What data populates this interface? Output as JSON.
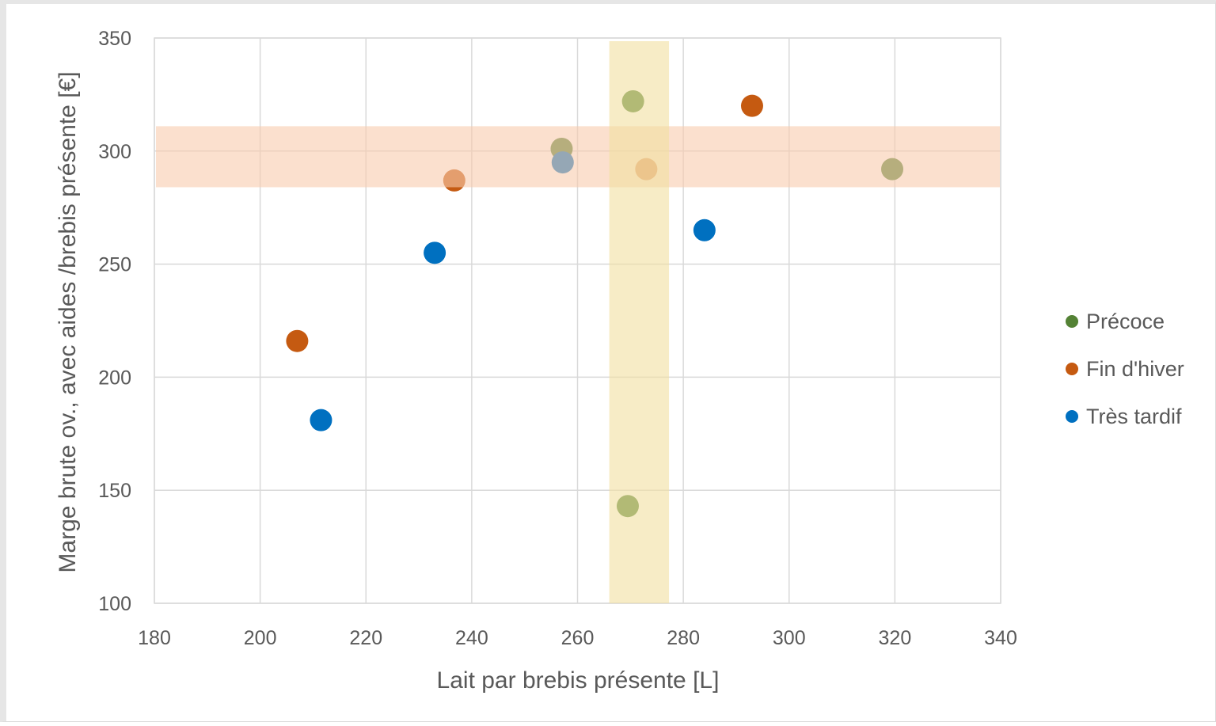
{
  "chart_data": {
    "type": "scatter",
    "title": "",
    "xlabel": "Lait par brebis présente [L]",
    "ylabel": "Marge brute ov., avec aides /brebis présente [€]",
    "xlim": [
      180,
      340
    ],
    "ylim": [
      100,
      350
    ],
    "x_ticks": [
      "180",
      "200",
      "220",
      "240",
      "260",
      "280",
      "300",
      "320",
      "340"
    ],
    "y_ticks": [
      "100",
      "150",
      "200",
      "250",
      "300",
      "350"
    ],
    "grid": true,
    "legend_position": "right",
    "series": [
      {
        "name": "Précoce",
        "color": "#548235",
        "points": [
          [
            257,
            301
          ],
          [
            270.5,
            322
          ],
          [
            269.5,
            143
          ],
          [
            319.5,
            292
          ]
        ]
      },
      {
        "name": "Fin d'hiver",
        "color": "#c55a11",
        "points": [
          [
            207,
            216
          ],
          [
            236.7,
            287
          ],
          [
            293,
            320
          ],
          [
            273,
            292
          ]
        ]
      },
      {
        "name": "Très tardif",
        "color": "#0070c0",
        "points": [
          [
            211.5,
            181
          ],
          [
            233,
            255
          ],
          [
            257.2,
            295
          ],
          [
            284,
            265
          ]
        ]
      }
    ],
    "bands": [
      {
        "orientation": "horizontal",
        "range": [
          284,
          311
        ],
        "color": "#f8cbad"
      },
      {
        "orientation": "vertical",
        "range": [
          266,
          277.3
        ],
        "color": "#f2dfa0"
      }
    ]
  }
}
